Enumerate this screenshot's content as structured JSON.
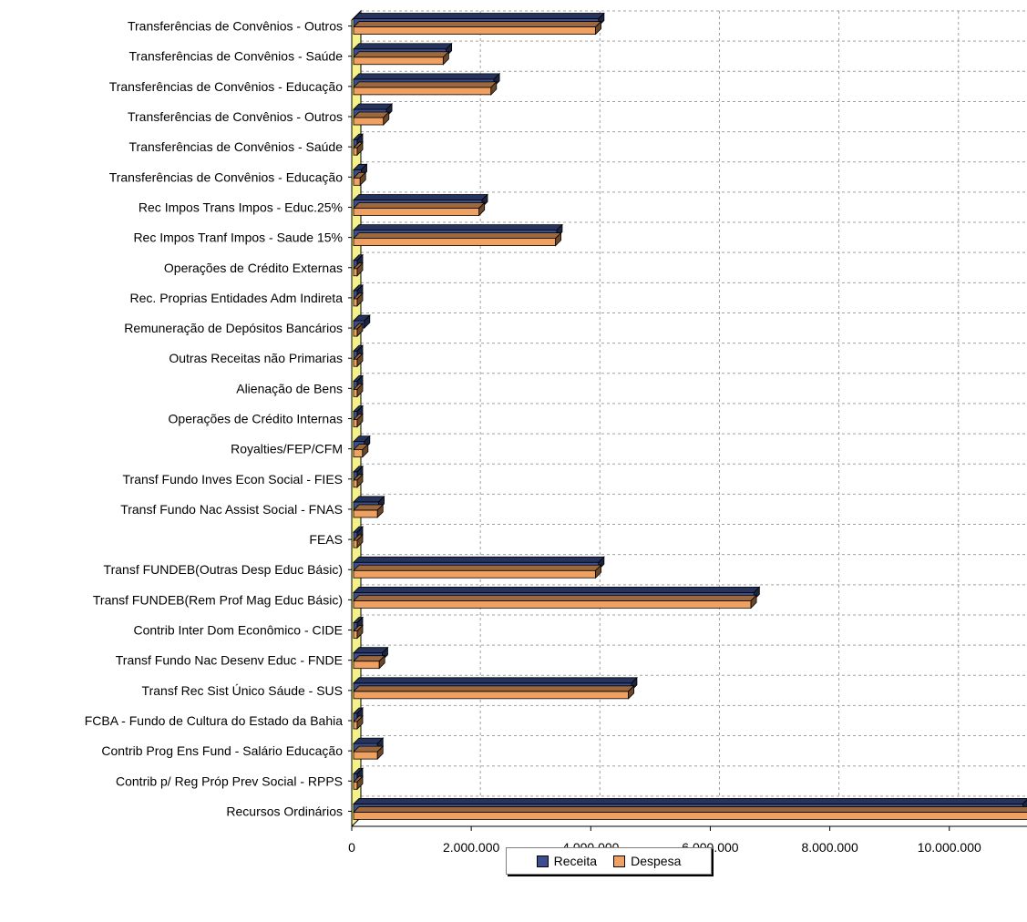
{
  "chart_data": {
    "type": "bar",
    "orientation": "horizontal",
    "categories": [
      "Transferências de Convênios - Outros",
      "Transferências de Convênios - Saúde",
      "Transferências de Convênios - Educação",
      "Transferências de Convênios - Outros",
      "Transferências de Convênios - Saúde",
      "Transferências de Convênios - Educação",
      "Rec Impos Trans Impos - Educ.25%",
      "Rec Impos Tranf Impos - Saude 15%",
      "Operações de Crédito Externas",
      "Rec. Proprias Entidades Adm Indireta",
      "Remuneração de Depósitos Bancários",
      "Outras Receitas não Primarias",
      "Alienação de Bens",
      "Operações de Crédito Internas",
      "Royalties/FEP/CFM",
      "Transf Fundo Inves Econ Social - FIES",
      "Transf Fundo Nac Assist Social - FNAS",
      "FEAS",
      "Transf FUNDEB(Outras Desp Educ Básic)",
      "Transf FUNDEB(Rem Prof Mag Educ Básic)",
      "Contrib Inter Dom Econômico - CIDE",
      "Transf Fundo Nac Desenv Educ - FNDE",
      "Transf Rec Sist Único Sáude - SUS",
      "FCBA - Fundo de Cultura do Estado da Bahia",
      "Contrib Prog Ens Fund - Salário Educação",
      "Contrib p/ Reg Próp Prev Social - RPPS",
      "Recursos Ordinários"
    ],
    "series": [
      {
        "name": "Receita",
        "color": "#3b4f8f",
        "values": [
          4100000,
          1550000,
          2350000,
          550000,
          20000,
          130000,
          2150000,
          3400000,
          10000,
          10000,
          180000,
          10000,
          10000,
          10000,
          180000,
          10000,
          420000,
          60000,
          4100000,
          6700000,
          60000,
          480000,
          4650000,
          10000,
          400000,
          10000,
          11200000
        ]
      },
      {
        "name": "Despesa",
        "color": "#f0a060",
        "values": [
          4050000,
          1500000,
          2300000,
          500000,
          10000,
          110000,
          2100000,
          3380000,
          10000,
          10000,
          10000,
          10000,
          10000,
          10000,
          150000,
          10000,
          400000,
          40000,
          4050000,
          6650000,
          40000,
          430000,
          4600000,
          10000,
          400000,
          10000,
          11300000
        ]
      }
    ],
    "xlim": [
      0,
      11300000
    ],
    "xticks": [
      0,
      2000000,
      4000000,
      6000000,
      8000000,
      10000000
    ],
    "xtick_labels": [
      "0",
      "2.000.000",
      "4.000.000",
      "6.000.000",
      "8.000.000",
      "10.000.000"
    ],
    "grid": true,
    "legend_position": "bottom-center"
  }
}
